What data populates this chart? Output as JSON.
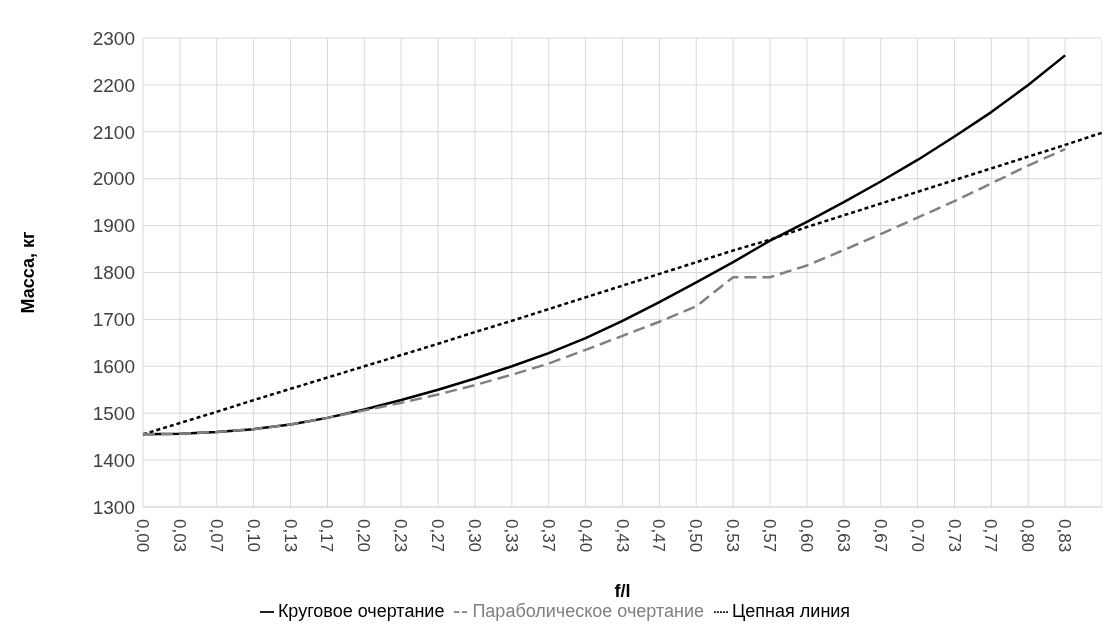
{
  "chart_data": {
    "type": "line",
    "xlabel": "f/l",
    "ylabel": "Масса, кг",
    "categories": [
      "0,00",
      "0,03",
      "0,07",
      "0,10",
      "0,13",
      "0,17",
      "0,20",
      "0,23",
      "0,27",
      "0,30",
      "0,33",
      "0,37",
      "0,40",
      "0,43",
      "0,47",
      "0,50",
      "0,53",
      "0,57",
      "0,60",
      "0,63",
      "0,67",
      "0,70",
      "0,73",
      "0,77",
      "0,80",
      "0,83",
      null
    ],
    "series": [
      {
        "name": "Круговое очертание",
        "color": "#000000",
        "line_style": "solid",
        "values": [
          1455,
          1456,
          1460,
          1466,
          1476,
          1490,
          1508,
          1528,
          1550,
          1574,
          1600,
          1628,
          1660,
          1697,
          1737,
          1779,
          1822,
          1868,
          1908,
          1950,
          1994,
          2040,
          2090,
          2142,
          2200,
          2263,
          null
        ]
      },
      {
        "name": "Цепная линия",
        "color": "#000000",
        "line_style": "dotted",
        "values": [
          1455,
          1479,
          1503,
          1528,
          1552,
          1576,
          1600,
          1624,
          1648,
          1673,
          1697,
          1722,
          1747,
          1772,
          1797,
          1822,
          1847,
          1870,
          1897,
          1922,
          1947,
          1972,
          1997,
          2022,
          2047,
          2072,
          2098
        ]
      },
      {
        "name": "Параболическое очертание",
        "color": "#808080",
        "line_style": "dashed",
        "values": [
          1455,
          1456,
          1460,
          1466,
          1476,
          1490,
          1506,
          1522,
          1540,
          1560,
          1582,
          1606,
          1635,
          1665,
          1695,
          1728,
          1790,
          1790,
          1815,
          1848,
          1882,
          1917,
          1952,
          1990,
          2028,
          2063,
          null
        ]
      }
    ],
    "ylim": [
      1300,
      2300
    ],
    "yticks": [
      1300,
      1400,
      1500,
      1600,
      1700,
      1800,
      1900,
      2000,
      2100,
      2200,
      2300
    ],
    "grid": true,
    "legend": "bottom",
    "marker": "none"
  }
}
